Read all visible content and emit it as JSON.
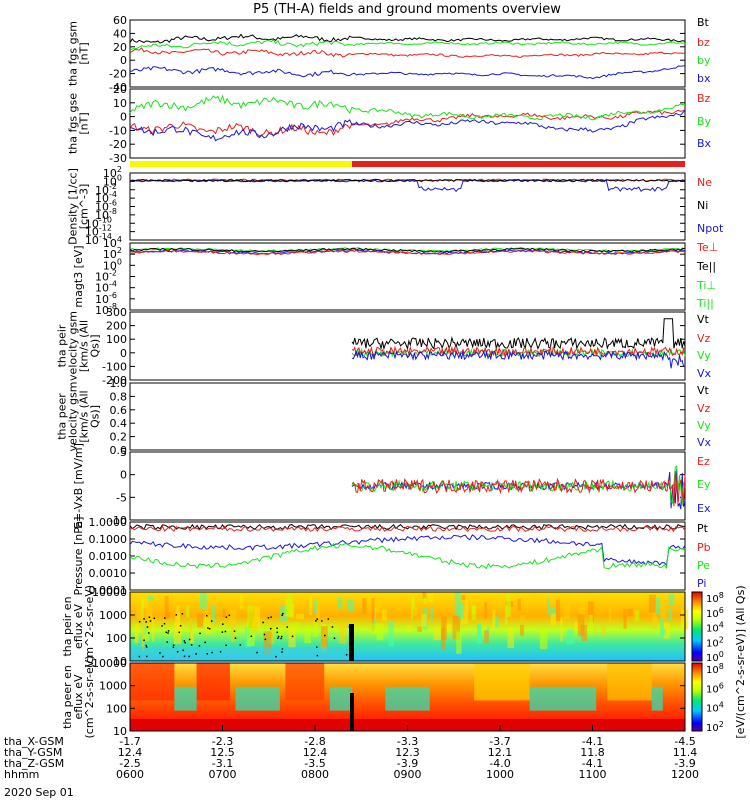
{
  "title": "P5 (TH-A) fields and ground moments overview",
  "date_label": "2020 Sep 01",
  "x_axis": {
    "ticks": [
      "0600",
      "0700",
      "0800",
      "0900",
      "1000",
      "1100",
      "1200"
    ],
    "rows": [
      {
        "label": "tha_X-GSM",
        "values": [
          "-1.7",
          "-2.3",
          "-2.8",
          "-3.3",
          "-3.7",
          "-4.1",
          "-4.5"
        ]
      },
      {
        "label": "tha_Y-GSM",
        "values": [
          "12.4",
          "12.5",
          "12.4",
          "12.3",
          "12.1",
          "11.8",
          "11.4"
        ]
      },
      {
        "label": "tha_Z-GSM",
        "values": [
          "-2.5",
          "-3.1",
          "-3.5",
          "-3.9",
          "-4.0",
          "-4.1",
          "-3.9"
        ]
      },
      {
        "label": "hhmm",
        "values": [
          "0600",
          "0700",
          "0800",
          "0900",
          "1000",
          "1100",
          "1200"
        ]
      }
    ]
  },
  "colors": {
    "black": "#000000",
    "red": "#e8201c",
    "green": "#18e418",
    "blue": "#1818d8",
    "yellow": "#f8f800",
    "cyan": "#00c8e8",
    "orange": "#ff9800"
  },
  "colorbar": {
    "ticks_top": [
      "10^8",
      "10^6",
      "10^4",
      "10^2",
      "10^0"
    ],
    "ticks_bottom": [
      "10^8",
      "10^6",
      "10^4",
      "10^2"
    ],
    "label": "[eV/(cm^2-s-sr-eV)] (All Qs)"
  },
  "chart_data": [
    {
      "id": "bfield_gsm",
      "type": "line",
      "ylabel": "tha fgs gsm [nT]",
      "ylim": [
        -40,
        60
      ],
      "yticks": [
        "60",
        "40",
        "20",
        "0",
        "-20",
        "-40"
      ],
      "x": [
        6,
        7,
        8,
        9,
        10,
        11,
        12
      ],
      "series": [
        {
          "name": "Bt",
          "color": "black",
          "values": [
            27,
            34,
            33,
            31,
            30,
            32,
            30
          ]
        },
        {
          "name": "bz",
          "color": "red",
          "values": [
            13,
            12,
            10,
            8,
            6,
            9,
            10
          ]
        },
        {
          "name": "by",
          "color": "green",
          "values": [
            18,
            26,
            24,
            25,
            25,
            25,
            25
          ]
        },
        {
          "name": "bx",
          "color": "blue",
          "values": [
            -14,
            -16,
            -20,
            -20,
            -21,
            -25,
            -10
          ]
        }
      ]
    },
    {
      "id": "bfield_gse",
      "type": "line",
      "ylabel": "tha fgs gse [nT]",
      "ylim": [
        -35,
        20
      ],
      "yticks": [
        "20",
        "10",
        "0",
        "-10",
        "-20",
        "-30"
      ],
      "x": [
        6,
        7,
        8,
        9,
        10,
        11,
        12
      ],
      "series": [
        {
          "name": "Bz",
          "color": "red",
          "values": [
            -10,
            -12,
            -14,
            -5,
            -1,
            -3,
            3
          ]
        },
        {
          "name": "By",
          "color": "green",
          "values": [
            5,
            10,
            8,
            0,
            -2,
            -2,
            6
          ]
        },
        {
          "name": "Bx",
          "color": "blue",
          "values": [
            -10,
            -18,
            -10,
            -8,
            -6,
            -14,
            2
          ]
        }
      ]
    },
    {
      "id": "density",
      "type": "line",
      "ylabel": "Density [1/cc] [cm^-3]",
      "ylim": [
        -14,
        3
      ],
      "yticks": [
        "10^2",
        "10^0",
        "10^-2",
        "10^-4",
        "10^-6",
        "10^-8",
        "10^-10",
        "10^-12",
        "10^-14"
      ],
      "yscale": "log",
      "series": [
        {
          "name": "Ne",
          "color": "red"
        },
        {
          "name": "Ni",
          "color": "black"
        },
        {
          "name": "Npot",
          "color": "blue"
        }
      ]
    },
    {
      "id": "temperature",
      "type": "line",
      "ylabel": "magt3 [eV]",
      "ylim": [
        -8,
        4
      ],
      "yticks": [
        "10^4",
        "10^2",
        "10^0",
        "10^-2",
        "10^-4",
        "10^-6",
        "10^-8"
      ],
      "yscale": "log",
      "series": [
        {
          "name": "Te⊥",
          "color": "red"
        },
        {
          "name": "Te||",
          "color": "black"
        },
        {
          "name": "Ti⊥",
          "color": "green"
        },
        {
          "name": "Ti||",
          "color": "green"
        }
      ]
    },
    {
      "id": "velocity_peir",
      "type": "line",
      "ylabel": "tha peir velocity gsm [km/s (All Qs)]",
      "ylim": [
        -200,
        300
      ],
      "yticks": [
        "300",
        "200",
        "100",
        "0",
        "-100",
        "-200"
      ],
      "series": [
        {
          "name": "Vt",
          "color": "black"
        },
        {
          "name": "Vz",
          "color": "red"
        },
        {
          "name": "Vy",
          "color": "green"
        },
        {
          "name": "Vx",
          "color": "blue"
        }
      ]
    },
    {
      "id": "velocity_peer",
      "type": "line",
      "ylabel": "tha peer velocity gsm [km/s (All Qs)]",
      "ylim": [
        0,
        1
      ],
      "yticks": [
        "1.0",
        "0.8",
        "0.6",
        "0.4",
        "0.2",
        "0.0"
      ],
      "series": [
        {
          "name": "Vt",
          "color": "black"
        },
        {
          "name": "Vz",
          "color": "red"
        },
        {
          "name": "Vy",
          "color": "green"
        },
        {
          "name": "Vx",
          "color": "blue"
        }
      ]
    },
    {
      "id": "efield",
      "type": "line",
      "ylabel": "E=-VxB [mV/m]",
      "ylim": [
        -10,
        10
      ],
      "yticks": [
        "5",
        "0",
        "-5",
        "-10"
      ],
      "series": [
        {
          "name": "Ez",
          "color": "red"
        },
        {
          "name": "Ey",
          "color": "green"
        },
        {
          "name": "Ex",
          "color": "blue"
        }
      ]
    },
    {
      "id": "pressure",
      "type": "line",
      "ylabel": "Pressure [nPa]",
      "ylim": [
        -4,
        0
      ],
      "yticks": [
        "1.0000",
        "0.1000",
        "0.0100",
        "0.0010",
        "0.0001"
      ],
      "yscale": "log",
      "series": [
        {
          "name": "Pt",
          "color": "black"
        },
        {
          "name": "Pb",
          "color": "red"
        },
        {
          "name": "Pe",
          "color": "green"
        },
        {
          "name": "Pi",
          "color": "blue"
        }
      ]
    },
    {
      "id": "peir_eflux",
      "type": "heatmap",
      "ylabel": "tha peir en eflux eV (cm^2-s-sr-eV)",
      "yticks": [
        "10000",
        "1000",
        "100",
        "10"
      ],
      "yscale": "log"
    },
    {
      "id": "peer_eflux",
      "type": "heatmap",
      "ylabel": "tha peer en eflux eV (cm^2-s-sr-eV)",
      "yticks": [
        "10000",
        "1000",
        "100",
        "10"
      ],
      "yscale": "log"
    }
  ]
}
